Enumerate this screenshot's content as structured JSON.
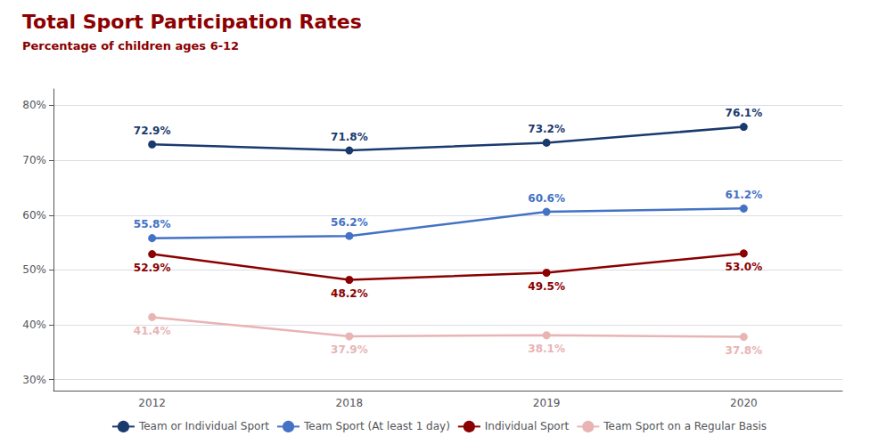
{
  "chart_data": {
    "type": "line",
    "title": "Total Sport Participation Rates",
    "subtitle": "Percentage of children ages 6-12",
    "categories": [
      "2012",
      "2018",
      "2019",
      "2020"
    ],
    "series": [
      {
        "name": "Team or Individual Sport",
        "color": "#1a3a6e",
        "values": [
          72.9,
          71.8,
          73.2,
          76.1
        ],
        "value_labels": [
          "72.9%",
          "71.8%",
          "73.2%",
          "76.1%"
        ]
      },
      {
        "name": "Team Sport (At least 1 day)",
        "color": "#4472c4",
        "values": [
          55.8,
          56.2,
          60.6,
          61.2
        ],
        "value_labels": [
          "55.8%",
          "56.2%",
          "60.6%",
          "61.2%"
        ]
      },
      {
        "name": "Individual Sport",
        "color": "#8B0000",
        "values": [
          52.9,
          48.2,
          49.5,
          53.0
        ],
        "value_labels": [
          "52.9%",
          "48.2%",
          "49.5%",
          "53.0%"
        ]
      },
      {
        "name": "Team Sport on a Regular Basis",
        "color": "#e8b4b4",
        "values": [
          41.4,
          37.9,
          38.1,
          37.8
        ],
        "value_labels": [
          "41.4%",
          "37.9%",
          "38.1%",
          "37.8%"
        ]
      }
    ],
    "ylim": [
      28,
      83
    ],
    "yticks": [
      {
        "value": 30,
        "label": "30%"
      },
      {
        "value": 40,
        "label": "40%"
      },
      {
        "value": 50,
        "label": "50%"
      },
      {
        "value": 60,
        "label": "60%"
      },
      {
        "value": 70,
        "label": "70%"
      },
      {
        "value": 80,
        "label": "80%"
      }
    ],
    "grid": true,
    "legend": "bottom",
    "marker": "circle",
    "data_labels": true
  }
}
